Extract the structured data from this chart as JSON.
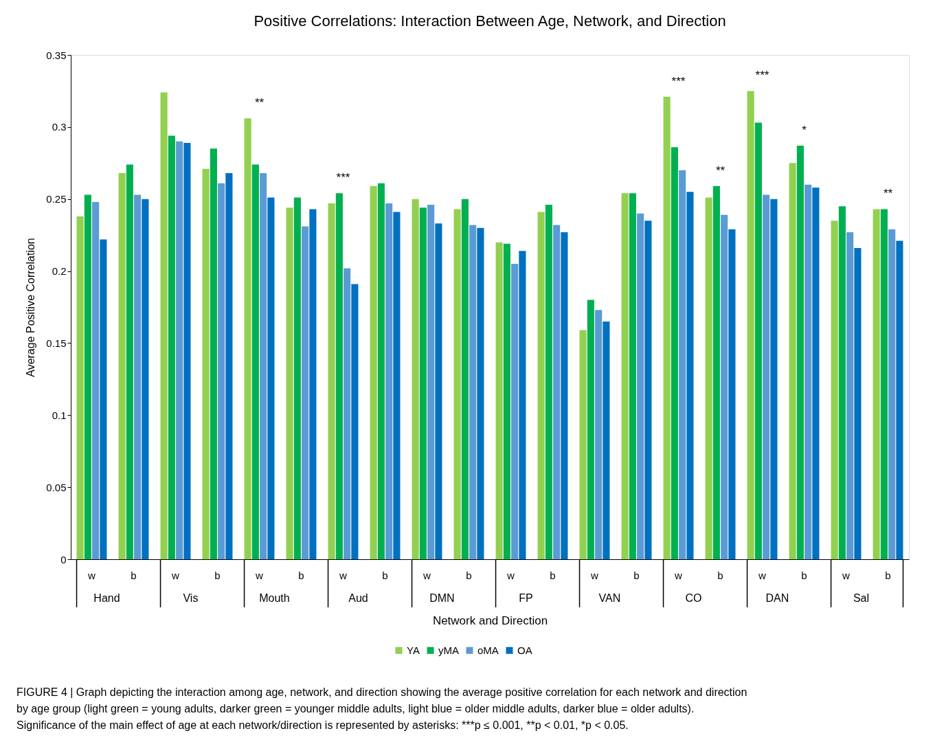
{
  "chart_data": {
    "type": "bar",
    "title": "Positive Correlations: Interaction Between Age, Network, and Direction",
    "xlabel": "Network and Direction",
    "ylabel": "Average Positive Correlation",
    "categories": [
      "w",
      "b",
      "w",
      "b",
      "w",
      "b",
      "w",
      "b",
      "w",
      "b",
      "w",
      "b",
      "w",
      "b",
      "w",
      "b",
      "w",
      "b",
      "w",
      "b"
    ],
    "series": [
      {
        "name": "YA",
        "color": "#92d050",
        "values": [
          0.238,
          0.268,
          0.324,
          0.271,
          0.306,
          0.244,
          0.247,
          0.259,
          0.25,
          0.243,
          0.22,
          0.241,
          0.159,
          0.254,
          0.321,
          0.251,
          0.325,
          0.275,
          0.235,
          0.243
        ]
      },
      {
        "name": "yMA",
        "color": "#00b050",
        "values": [
          0.253,
          0.274,
          0.294,
          0.285,
          0.274,
          0.251,
          0.254,
          0.261,
          0.244,
          0.25,
          0.219,
          0.246,
          0.18,
          0.254,
          0.286,
          0.259,
          0.303,
          0.287,
          0.245,
          0.243
        ]
      },
      {
        "name": "oMA",
        "color": "#5b9bd5",
        "values": [
          0.248,
          0.253,
          0.29,
          0.261,
          0.268,
          0.231,
          0.202,
          0.247,
          0.246,
          0.232,
          0.205,
          0.232,
          0.173,
          0.24,
          0.27,
          0.239,
          0.253,
          0.26,
          0.227,
          0.229
        ]
      },
      {
        "name": "OA",
        "color": "#0070c0",
        "values": [
          0.222,
          0.25,
          0.289,
          0.268,
          0.251,
          0.243,
          0.191,
          0.241,
          0.233,
          0.23,
          0.214,
          0.227,
          0.165,
          0.235,
          0.255,
          0.229,
          0.25,
          0.258,
          0.216,
          0.221
        ]
      }
    ],
    "ylim": [
      0,
      0.35
    ],
    "yticks": [
      0,
      0.05,
      0.1,
      0.15,
      0.2,
      0.25,
      0.3,
      0.35
    ],
    "grid": false,
    "legend": "bottom",
    "annotations": [
      "Hand",
      "Vis",
      "Mouth",
      "Aud",
      "DMN",
      "FP",
      "VAN",
      "CO",
      "DAN",
      "Sal",
      "**",
      "***",
      "***",
      "**",
      "***",
      "*",
      "**",
      "FIGURE 4 | Graph depicting the interaction among age, network, and direction showing the average positive correlation for each network and direction by age group (light green = young adults, darker green = younger middle adults, light blue = older middle adults, darker blue = older adults). Significance of the main effect of age at each network/direction is represented by asterisks: ***p ≤ 0.001, **p < 0.01, *p < 0.05."
    ]
  }
}
